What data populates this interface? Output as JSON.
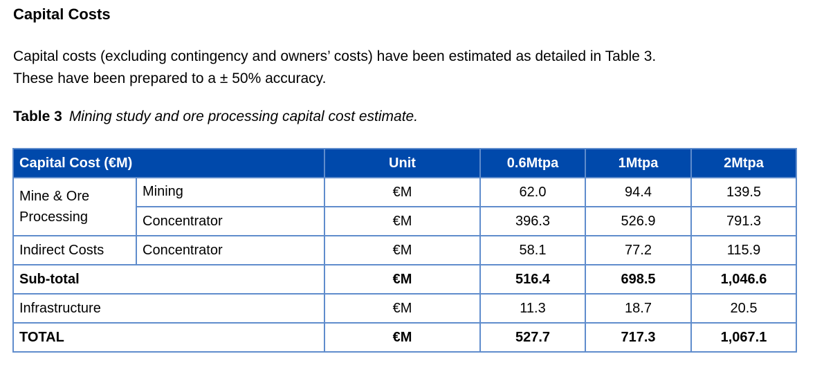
{
  "heading": "Capital Costs",
  "paragraph_line1": "Capital costs (excluding contingency and owners’ costs) have been estimated as detailed in Table 3.",
  "paragraph_line2": "These have been prepared to a ± 50% accuracy.",
  "caption": {
    "label": "Table 3",
    "text": "Mining study and ore processing capital cost estimate."
  },
  "table": {
    "headers": [
      "Capital Cost (€M)",
      "Unit",
      "0.6Mtpa",
      "1Mtpa",
      "2Mtpa"
    ],
    "rows": [
      {
        "group": "Mine & Ore Processing",
        "item": "Mining",
        "unit": "€M",
        "v": [
          "62.0",
          "94.4",
          "139.5"
        ]
      },
      {
        "item": "Concentrator",
        "unit": "€M",
        "v": [
          "396.3",
          "526.9",
          "791.3"
        ]
      },
      {
        "group": "Indirect Costs",
        "item": "Concentrator",
        "unit": "€M",
        "v": [
          "58.1",
          "77.2",
          "115.9"
        ]
      },
      {
        "group": "Sub-total",
        "item": "",
        "unit": "€M",
        "v": [
          "516.4",
          "698.5",
          "1,046.6"
        ]
      },
      {
        "group": "Infrastructure",
        "item": "",
        "unit": "€M",
        "v": [
          "11.3",
          "18.7",
          "20.5"
        ]
      },
      {
        "group": "TOTAL",
        "item": "",
        "unit": "€M",
        "v": [
          "527.7",
          "717.3",
          "1,067.1"
        ]
      }
    ]
  },
  "colors": {
    "header_bg": "#0049ab",
    "border": "#5f8ccc"
  }
}
